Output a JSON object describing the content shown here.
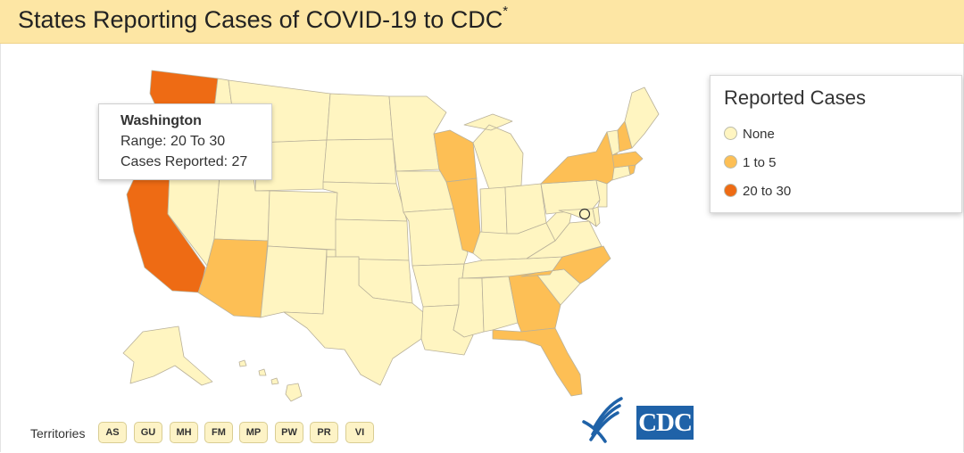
{
  "header": {
    "title": "States Reporting Cases of COVID-19 to CDC",
    "footnote_mark": "*"
  },
  "legend": {
    "title": "Reported Cases",
    "items": [
      {
        "label": "None",
        "color": "#fff5c1"
      },
      {
        "label": "1 to 5",
        "color": "#fdbf55"
      },
      {
        "label": "20 to 30",
        "color": "#ee6b14"
      }
    ]
  },
  "tooltip": {
    "state": "Washington",
    "range": "Range: 20 To 30",
    "cases": "Cases Reported: 27"
  },
  "map_data": {
    "categories": [
      "None",
      "1 to 5",
      "20 to 30"
    ],
    "states_by_category": {
      "20 to 30": [
        "Washington",
        "California"
      ],
      "1 to 5": [
        "Arizona",
        "Illinois",
        "Wisconsin",
        "Georgia",
        "Florida",
        "North Carolina",
        "New York",
        "New Hampshire",
        "Massachusetts",
        "Rhode Island"
      ],
      "None": "all other states and the District of Columbia"
    },
    "hovered_state": "Washington"
  },
  "territories": {
    "label": "Territories",
    "buttons": [
      "AS",
      "GU",
      "MH",
      "FM",
      "MP",
      "PW",
      "PR",
      "VI"
    ]
  },
  "logos": {
    "hhs_icon": "hhs-eagle-icon",
    "cdc": "CDC"
  }
}
